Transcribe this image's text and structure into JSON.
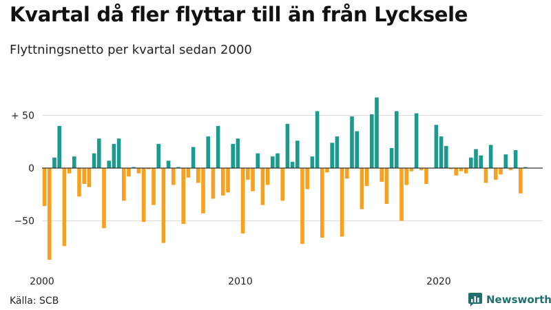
{
  "header": {
    "title": "Kvartal då fler flyttar till än från Lycksele",
    "subtitle": "Flyttningsnetto per kvartal sedan 2000"
  },
  "footer": {
    "source": "Källa: SCB",
    "brand": "Newsworthy"
  },
  "colors": {
    "positive": "#1a9b8d",
    "negative": "#f7a11c",
    "grid": "#dddddd",
    "axis": "#333333",
    "brand": "#1f6f6b"
  },
  "chart_data": {
    "type": "bar",
    "title": "Kvartal då fler flyttar till än från Lycksele",
    "subtitle": "Flyttningsnetto per kvartal sedan 2000",
    "xlabel": "",
    "ylabel": "",
    "x_tick_labels": [
      "2000",
      "2010",
      "2020"
    ],
    "y_ticks": [
      {
        "value": 50,
        "label": "+ 50"
      },
      {
        "value": 0,
        "label": "0"
      },
      {
        "value": -50,
        "label": "−50"
      }
    ],
    "ylim": [
      -90,
      70
    ],
    "grid": true,
    "start": "2000 Q1",
    "values": [
      -36,
      -87,
      10,
      40,
      -74,
      -5,
      11,
      -27,
      -15,
      -18,
      14,
      28,
      -57,
      7,
      23,
      28,
      -31,
      -8,
      1,
      -5,
      -51,
      -1,
      -35,
      23,
      -71,
      7,
      -16,
      1,
      -53,
      -9,
      20,
      -14,
      -43,
      30,
      -29,
      40,
      -26,
      -23,
      23,
      28,
      -62,
      -11,
      -22,
      14,
      -35,
      -16,
      11,
      14,
      -31,
      42,
      6,
      26,
      -72,
      -20,
      11,
      54,
      -66,
      -4,
      24,
      30,
      -65,
      -10,
      49,
      35,
      -39,
      -17,
      51,
      67,
      -13,
      -34,
      19,
      54,
      -50,
      -16,
      -3,
      52,
      -2,
      -15,
      0,
      41,
      30,
      21,
      -1,
      -7,
      -3,
      -5,
      10,
      18,
      12,
      -14,
      22,
      -11,
      -6,
      13,
      -2,
      17,
      -24,
      1
    ]
  }
}
